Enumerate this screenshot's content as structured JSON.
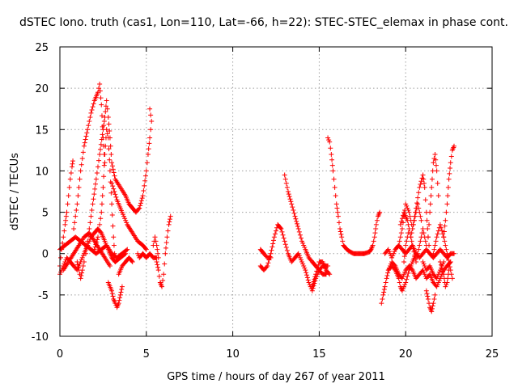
{
  "chart_data": {
    "type": "scatter",
    "title": "dSTEC Iono. truth (cas1, Lon=110, Lat=-66, h=22): STEC-STEC_elemax in phase cont.",
    "xlabel": "GPS time / hours of day 267 of year 2011",
    "ylabel": "dSTEC  / TECUs",
    "xlim": [
      0,
      25
    ],
    "ylim": [
      -10,
      25
    ],
    "xticks": [
      0,
      5,
      10,
      15,
      20,
      25
    ],
    "yticks": [
      -10,
      -5,
      0,
      5,
      10,
      15,
      20,
      25
    ],
    "xtick_labels": [
      "0",
      "5",
      "10",
      "15",
      "20",
      "25"
    ],
    "ytick_labels": [
      "-10",
      "-5",
      "0",
      "5",
      "10",
      "15",
      "20",
      "25"
    ],
    "grid": true,
    "marker": "plus",
    "color": "#ff0000",
    "series_paths": [
      [
        [
          0.0,
          -1.5
        ],
        [
          0.1,
          0.5
        ],
        [
          0.2,
          2.0
        ],
        [
          0.3,
          3.5
        ],
        [
          0.4,
          5.0
        ],
        [
          0.5,
          7.0
        ],
        [
          0.6,
          9.0
        ],
        [
          0.7,
          10.5
        ],
        [
          0.75,
          11.2
        ]
      ],
      [
        [
          0.8,
          3.0
        ],
        [
          1.0,
          6.0
        ],
        [
          1.2,
          10.0
        ],
        [
          1.4,
          13.0
        ],
        [
          1.6,
          15.0
        ],
        [
          1.8,
          17.0
        ],
        [
          2.0,
          18.5
        ],
        [
          2.2,
          19.5
        ],
        [
          2.3,
          20.5
        ],
        [
          2.4,
          18.0
        ],
        [
          2.5,
          14.0
        ],
        [
          2.6,
          11.0
        ]
      ],
      [
        [
          1.5,
          0.0
        ],
        [
          1.7,
          3.0
        ],
        [
          1.9,
          6.0
        ],
        [
          2.1,
          9.0
        ],
        [
          2.3,
          12.0
        ],
        [
          2.5,
          15.0
        ],
        [
          2.6,
          16.5
        ],
        [
          2.7,
          18.5
        ],
        [
          2.8,
          16.5
        ],
        [
          2.9,
          14.0
        ],
        [
          3.0,
          11.0
        ],
        [
          3.2,
          9.0
        ],
        [
          3.5,
          8.0
        ],
        [
          3.8,
          7.0
        ],
        [
          4.0,
          6.0
        ],
        [
          4.2,
          5.5
        ],
        [
          4.4,
          5.0
        ],
        [
          4.6,
          5.5
        ],
        [
          4.8,
          7.0
        ],
        [
          5.0,
          10.0
        ],
        [
          5.1,
          12.0
        ],
        [
          5.2,
          14.0
        ],
        [
          5.3,
          16.0
        ],
        [
          5.2,
          17.5
        ]
      ],
      [
        [
          2.0,
          0.5
        ],
        [
          2.2,
          2.0
        ],
        [
          2.4,
          5.0
        ],
        [
          2.5,
          8.0
        ],
        [
          2.6,
          12.0
        ],
        [
          2.7,
          15.0
        ],
        [
          2.8,
          14.0
        ],
        [
          2.9,
          10.0
        ],
        [
          3.0,
          6.0
        ],
        [
          3.1,
          2.0
        ],
        [
          3.2,
          -1.0
        ]
      ],
      [
        [
          3.0,
          8.5
        ],
        [
          3.3,
          6.5
        ],
        [
          3.6,
          5.0
        ],
        [
          3.9,
          3.5
        ],
        [
          4.2,
          2.5
        ],
        [
          4.5,
          1.5
        ],
        [
          4.8,
          1.0
        ],
        [
          5.0,
          0.5
        ]
      ],
      [
        [
          0.0,
          -2.5
        ],
        [
          0.2,
          -1.5
        ],
        [
          0.4,
          -0.5
        ],
        [
          0.6,
          -1.0
        ],
        [
          0.8,
          -1.5
        ],
        [
          1.0,
          -2.0
        ],
        [
          1.2,
          -1.0
        ],
        [
          1.4,
          0.0
        ],
        [
          1.6,
          1.0
        ],
        [
          1.8,
          2.0
        ],
        [
          2.0,
          2.5
        ],
        [
          2.2,
          3.0
        ],
        [
          2.4,
          2.5
        ],
        [
          2.6,
          1.5
        ],
        [
          2.8,
          0.5
        ],
        [
          3.0,
          -0.5
        ],
        [
          3.2,
          -1.0
        ],
        [
          3.5,
          -0.5
        ],
        [
          3.8,
          0.0
        ]
      ],
      [
        [
          0.0,
          0.5
        ],
        [
          0.3,
          1.0
        ],
        [
          0.6,
          1.5
        ],
        [
          0.9,
          2.0
        ],
        [
          1.2,
          1.5
        ],
        [
          1.5,
          1.0
        ],
        [
          1.8,
          0.5
        ],
        [
          2.1,
          0.0
        ],
        [
          2.4,
          0.5
        ],
        [
          2.7,
          1.0
        ],
        [
          3.0,
          0.0
        ],
        [
          3.3,
          -0.5
        ],
        [
          3.6,
          0.0
        ],
        [
          3.9,
          0.5
        ]
      ],
      [
        [
          0.2,
          -2.0
        ],
        [
          0.5,
          -1.0
        ],
        [
          0.8,
          0.0
        ],
        [
          1.1,
          1.0
        ],
        [
          1.4,
          2.0
        ],
        [
          1.7,
          2.5
        ],
        [
          2.0,
          1.5
        ],
        [
          2.3,
          0.5
        ],
        [
          2.6,
          -0.5
        ],
        [
          2.9,
          -1.5
        ]
      ],
      [
        [
          1.0,
          -1.0
        ],
        [
          1.1,
          -2.0
        ],
        [
          1.2,
          -3.0
        ],
        [
          1.3,
          -2.0
        ],
        [
          1.4,
          -1.0
        ]
      ],
      [
        [
          2.8,
          -3.5
        ],
        [
          3.0,
          -4.5
        ],
        [
          3.1,
          -5.5
        ],
        [
          3.2,
          -6.0
        ],
        [
          3.3,
          -6.5
        ],
        [
          3.4,
          -6.0
        ],
        [
          3.5,
          -5.0
        ],
        [
          3.6,
          -4.0
        ]
      ],
      [
        [
          3.4,
          -2.5
        ],
        [
          3.6,
          -1.5
        ],
        [
          3.8,
          -1.0
        ],
        [
          4.0,
          -0.5
        ],
        [
          4.2,
          -1.0
        ]
      ],
      [
        [
          4.5,
          0.0
        ],
        [
          4.6,
          -0.5
        ],
        [
          4.8,
          0.0
        ],
        [
          5.0,
          -0.5
        ],
        [
          5.2,
          0.0
        ],
        [
          5.4,
          -0.5
        ],
        [
          5.6,
          -0.5
        ]
      ],
      [
        [
          5.4,
          1.0
        ],
        [
          5.5,
          2.0
        ],
        [
          5.6,
          1.0
        ],
        [
          5.7,
          -0.5
        ]
      ],
      [
        [
          5.6,
          -1.0
        ],
        [
          5.7,
          -2.0
        ],
        [
          5.8,
          -3.5
        ],
        [
          5.9,
          -4.0
        ],
        [
          6.0,
          -2.5
        ],
        [
          6.1,
          0.0
        ],
        [
          6.2,
          2.0
        ],
        [
          6.3,
          3.5
        ],
        [
          6.4,
          4.5
        ]
      ],
      [
        [
          11.6,
          -1.5
        ],
        [
          11.8,
          -2.0
        ],
        [
          12.0,
          -1.5
        ],
        [
          12.2,
          0.0
        ],
        [
          12.4,
          2.0
        ],
        [
          12.6,
          3.5
        ],
        [
          12.8,
          3.0
        ],
        [
          13.0,
          1.5
        ],
        [
          13.2,
          0.0
        ],
        [
          13.4,
          -1.0
        ],
        [
          13.6,
          -0.5
        ],
        [
          13.8,
          0.0
        ],
        [
          14.0,
          -1.0
        ],
        [
          14.2,
          -2.0
        ],
        [
          14.4,
          -3.5
        ],
        [
          14.6,
          -4.5
        ],
        [
          14.8,
          -3.0
        ],
        [
          15.0,
          -2.0
        ],
        [
          15.2,
          -1.5
        ],
        [
          15.5,
          -1.5
        ]
      ],
      [
        [
          11.6,
          0.5
        ],
        [
          11.8,
          0.0
        ],
        [
          12.0,
          -0.5
        ],
        [
          12.2,
          -0.5
        ]
      ],
      [
        [
          13.0,
          9.5
        ],
        [
          13.2,
          7.5
        ],
        [
          13.4,
          6.0
        ],
        [
          13.6,
          4.5
        ],
        [
          13.8,
          3.0
        ],
        [
          14.0,
          1.5
        ],
        [
          14.2,
          0.5
        ],
        [
          14.4,
          -0.5
        ],
        [
          14.6,
          -1.0
        ],
        [
          14.8,
          -1.5
        ],
        [
          15.0,
          -2.0
        ],
        [
          15.2,
          -2.5
        ],
        [
          15.4,
          -2.5
        ]
      ],
      [
        [
          14.6,
          -4.0
        ],
        [
          14.8,
          -2.5
        ],
        [
          15.0,
          -1.0
        ],
        [
          15.2,
          -1.0
        ],
        [
          15.4,
          -2.0
        ],
        [
          15.6,
          -2.5
        ]
      ],
      [
        [
          15.5,
          14.0
        ],
        [
          15.6,
          13.5
        ],
        [
          15.7,
          12.0
        ],
        [
          15.8,
          10.0
        ],
        [
          15.9,
          8.0
        ],
        [
          16.0,
          6.0
        ],
        [
          16.1,
          4.5
        ],
        [
          16.2,
          3.0
        ],
        [
          16.3,
          2.0
        ],
        [
          16.4,
          1.0
        ],
        [
          16.6,
          0.5
        ],
        [
          16.8,
          0.2
        ],
        [
          17.0,
          0.0
        ],
        [
          17.3,
          0.0
        ],
        [
          17.6,
          0.0
        ],
        [
          17.9,
          0.2
        ],
        [
          18.0,
          0.5
        ],
        [
          18.1,
          1.0
        ],
        [
          18.2,
          2.0
        ],
        [
          18.3,
          3.5
        ],
        [
          18.4,
          4.5
        ],
        [
          18.5,
          5.0
        ]
      ],
      [
        [
          18.6,
          -6.0
        ],
        [
          18.7,
          -5.0
        ],
        [
          18.8,
          -4.0
        ],
        [
          18.9,
          -3.0
        ],
        [
          19.0,
          -2.0
        ],
        [
          19.2,
          -1.5
        ],
        [
          19.4,
          -2.0
        ],
        [
          19.6,
          -3.0
        ],
        [
          19.7,
          -4.0
        ],
        [
          19.8,
          -4.5
        ],
        [
          20.0,
          -3.5
        ],
        [
          20.2,
          -2.0
        ],
        [
          20.4,
          -1.0
        ],
        [
          20.6,
          0.0
        ]
      ],
      [
        [
          18.8,
          0.0
        ],
        [
          19.0,
          0.5
        ],
        [
          19.2,
          -0.5
        ],
        [
          19.4,
          0.5
        ],
        [
          19.6,
          1.0
        ],
        [
          19.8,
          0.5
        ],
        [
          20.0,
          0.0
        ],
        [
          20.2,
          0.5
        ],
        [
          20.4,
          1.0
        ],
        [
          20.6,
          0.0
        ],
        [
          20.8,
          -0.5
        ],
        [
          21.0,
          0.0
        ],
        [
          21.2,
          0.5
        ],
        [
          21.4,
          0.0
        ],
        [
          21.6,
          -0.5
        ],
        [
          21.8,
          0.0
        ],
        [
          22.0,
          0.5
        ],
        [
          22.2,
          0.0
        ],
        [
          22.4,
          -0.5
        ],
        [
          22.6,
          0.0
        ],
        [
          22.8,
          0.0
        ]
      ],
      [
        [
          19.0,
          -2.0
        ],
        [
          19.2,
          -1.0
        ],
        [
          19.4,
          -1.5
        ],
        [
          19.6,
          -2.5
        ],
        [
          19.8,
          -3.0
        ],
        [
          20.0,
          -2.0
        ],
        [
          20.2,
          -1.5
        ],
        [
          20.4,
          -2.0
        ],
        [
          20.6,
          -3.0
        ],
        [
          20.8,
          -2.5
        ],
        [
          21.0,
          -2.0
        ],
        [
          21.2,
          -3.0
        ],
        [
          21.4,
          -2.5
        ],
        [
          21.6,
          -3.5
        ],
        [
          21.8,
          -4.0
        ],
        [
          22.0,
          -3.0
        ],
        [
          22.2,
          -2.0
        ],
        [
          22.4,
          -1.5
        ],
        [
          22.6,
          -1.0
        ]
      ],
      [
        [
          19.6,
          1.0
        ],
        [
          19.8,
          3.0
        ],
        [
          20.0,
          6.0
        ],
        [
          20.2,
          5.0
        ],
        [
          20.4,
          3.0
        ],
        [
          20.6,
          5.5
        ],
        [
          20.8,
          8.0
        ],
        [
          21.0,
          9.5
        ],
        [
          21.1,
          8.0
        ],
        [
          21.2,
          5.0
        ],
        [
          21.3,
          2.0
        ],
        [
          21.4,
          0.0
        ]
      ],
      [
        [
          19.7,
          3.5
        ],
        [
          19.9,
          5.0
        ],
        [
          20.1,
          4.0
        ],
        [
          20.3,
          2.0
        ],
        [
          20.5,
          4.0
        ],
        [
          20.7,
          6.0
        ],
        [
          20.9,
          4.0
        ]
      ],
      [
        [
          19.9,
          -1.0
        ],
        [
          20.0,
          1.0
        ],
        [
          20.2,
          3.0
        ],
        [
          20.4,
          1.0
        ],
        [
          20.6,
          -1.0
        ],
        [
          20.8,
          1.0
        ],
        [
          21.0,
          3.0
        ],
        [
          21.2,
          1.0
        ]
      ],
      [
        [
          21.2,
          -4.5
        ],
        [
          21.3,
          -5.5
        ],
        [
          21.4,
          -6.5
        ],
        [
          21.5,
          -7.0
        ],
        [
          21.6,
          -6.0
        ],
        [
          21.7,
          -5.0
        ]
      ],
      [
        [
          21.3,
          2.0
        ],
        [
          21.4,
          5.0
        ],
        [
          21.5,
          8.0
        ],
        [
          21.6,
          11.0
        ],
        [
          21.7,
          12.0
        ],
        [
          21.8,
          10.0
        ],
        [
          21.9,
          7.0
        ]
      ],
      [
        [
          21.6,
          0.0
        ],
        [
          21.8,
          2.0
        ],
        [
          22.0,
          3.5
        ],
        [
          22.2,
          2.0
        ],
        [
          22.4,
          0.0
        ],
        [
          22.6,
          -2.0
        ],
        [
          22.7,
          -3.0
        ]
      ],
      [
        [
          22.0,
          -1.0
        ],
        [
          22.2,
          -2.5
        ],
        [
          22.3,
          -4.0
        ],
        [
          22.4,
          -3.5
        ],
        [
          22.5,
          -2.0
        ]
      ],
      [
        [
          22.2,
          2.0
        ],
        [
          22.3,
          4.0
        ],
        [
          22.4,
          6.0
        ],
        [
          22.5,
          9.0
        ],
        [
          22.6,
          11.0
        ],
        [
          22.7,
          12.5
        ],
        [
          22.8,
          13.0
        ]
      ],
      [
        [
          21.0,
          -1.0
        ],
        [
          21.2,
          -2.0
        ],
        [
          21.4,
          -1.5
        ],
        [
          21.6,
          -2.5
        ],
        [
          21.8,
          -3.0
        ],
        [
          22.0,
          -2.0
        ],
        [
          22.2,
          -1.0
        ]
      ]
    ]
  }
}
